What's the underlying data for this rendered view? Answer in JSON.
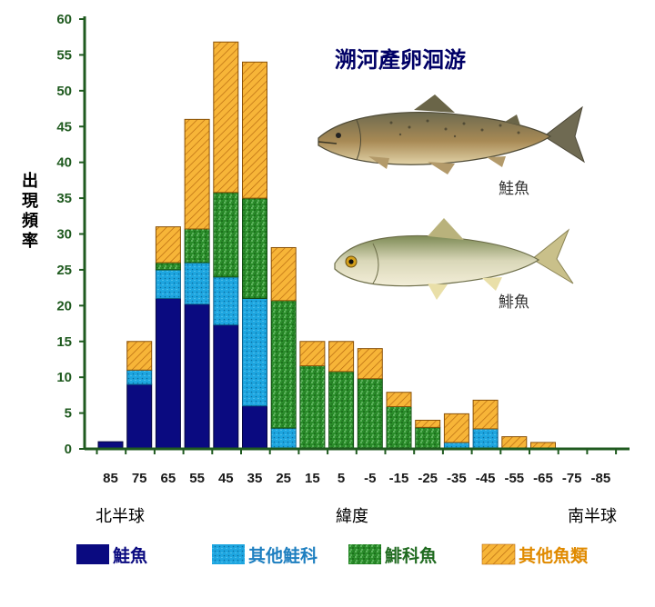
{
  "chart_data": {
    "type": "bar",
    "stacked": true,
    "title": "溯河產卵洄游",
    "ylabel": "出現頻率",
    "xlabel": "緯度",
    "x_region_left": "北半球",
    "x_region_right": "南半球",
    "ylim": [
      0,
      60
    ],
    "yticks": [
      0,
      5,
      10,
      15,
      20,
      25,
      30,
      35,
      40,
      45,
      50,
      55,
      60
    ],
    "categories": [
      "85",
      "75",
      "65",
      "55",
      "45",
      "35",
      "25",
      "15",
      "5",
      "-5",
      "-15",
      "-25",
      "-35",
      "-45",
      "-55",
      "-65",
      "-75",
      "-85"
    ],
    "series": [
      {
        "name": "鮭魚",
        "color": "#0a0a80",
        "pattern": "solid",
        "values": [
          1,
          9,
          21,
          20.2,
          17.3,
          6,
          0,
          0,
          0,
          0,
          0,
          0,
          0,
          0,
          0,
          0,
          0,
          0
        ]
      },
      {
        "name": "其他鮭科",
        "color": "#1ea6e0",
        "pattern": "dots",
        "values": [
          0,
          2,
          4,
          5.8,
          6.7,
          15,
          2.9,
          0,
          0,
          0,
          0,
          0,
          0.9,
          2.8,
          0,
          0,
          0,
          0
        ]
      },
      {
        "name": "鯡科魚",
        "color": "#2a8c2a",
        "pattern": "speckle",
        "values": [
          0,
          0,
          1,
          4.7,
          11.8,
          14,
          17.8,
          11.6,
          10.8,
          9.8,
          5.9,
          3,
          0,
          0,
          0,
          0,
          0,
          0
        ]
      },
      {
        "name": "其他魚類",
        "color": "#f7b538",
        "pattern": "hatch",
        "values": [
          0,
          4,
          5,
          15.3,
          21,
          19,
          7.4,
          3.4,
          4.2,
          4.2,
          2,
          1,
          4,
          4,
          1.7,
          0.9,
          0,
          0
        ]
      }
    ],
    "grid": false,
    "legend_position": "bottom"
  },
  "annotations": {
    "fish1_label": "鮭魚",
    "fish2_label": "鯡魚"
  },
  "colors": {
    "axis": "#1f5a1f",
    "title": "#000066"
  }
}
